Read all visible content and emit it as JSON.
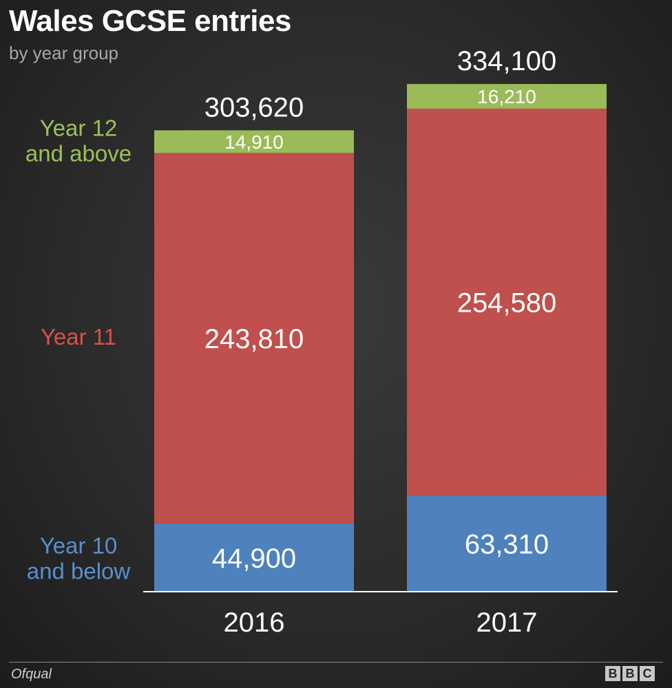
{
  "chart_data": {
    "type": "bar",
    "stacked": true,
    "title": "Wales GCSE entries",
    "subtitle": "by year group",
    "categories": [
      "2016",
      "2017"
    ],
    "series": [
      {
        "name": "Year 10 and below",
        "label_lines": [
          "Year 10",
          "and below"
        ],
        "color": "#4f81bd",
        "values": [
          44900,
          63310
        ],
        "value_labels": [
          "44,900",
          "63,310"
        ]
      },
      {
        "name": "Year 11",
        "label_lines": [
          "Year 11"
        ],
        "color": "#c0504d",
        "values": [
          243810,
          254580
        ],
        "value_labels": [
          "243,810",
          "254,580"
        ]
      },
      {
        "name": "Year 12 and above",
        "label_lines": [
          "Year 12",
          "and above"
        ],
        "color": "#9bbb59",
        "values": [
          14910,
          16210
        ],
        "value_labels": [
          "14,910",
          "16,210"
        ]
      }
    ],
    "totals": [
      303620,
      334100
    ],
    "total_labels": [
      "303,620",
      "334,100"
    ],
    "legend_placement": "left",
    "grid": false
  },
  "footer": {
    "source": "Ofqual",
    "logo_letters": [
      "B",
      "B",
      "C"
    ]
  }
}
